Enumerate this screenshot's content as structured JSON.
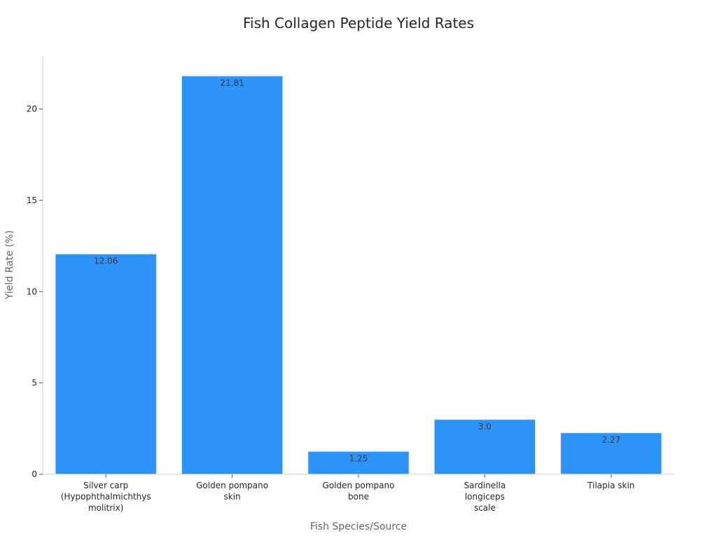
{
  "chart_data": {
    "type": "bar",
    "title": "Fish Collagen Peptide Yield Rates",
    "xlabel": "Fish Species/Source",
    "ylabel": "Yield Rate (%)",
    "categories": [
      [
        "Silver carp",
        "(Hypophthalmichthys",
        "molitrix)"
      ],
      [
        "Golden pompano",
        "skin"
      ],
      [
        "Golden pompano",
        "bone"
      ],
      [
        "Sardinella",
        "longiceps",
        "scale"
      ],
      [
        "Tilapia skin"
      ]
    ],
    "values": [
      12.06,
      21.81,
      1.25,
      3.0,
      2.27
    ],
    "value_labels": [
      "12.06",
      "21.81",
      "1.25",
      "3.0",
      "2.27"
    ],
    "yticks": [
      0,
      5,
      10,
      15,
      20
    ],
    "ylim": [
      0,
      22.9
    ],
    "grid": false,
    "bar_color": "#2e93f8"
  }
}
